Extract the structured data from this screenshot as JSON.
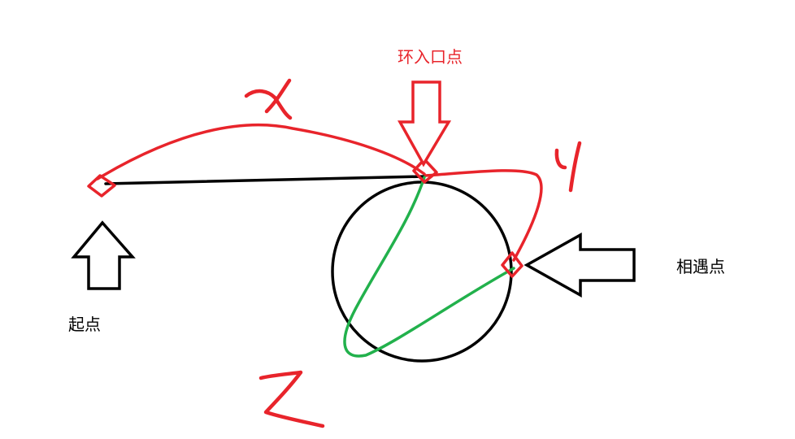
{
  "labels": {
    "start": "起点",
    "entry": "环入口点",
    "meet": "相遇点"
  },
  "variables": {
    "x": "x",
    "y": "y",
    "z": "z"
  },
  "colors": {
    "red": "#e8242b",
    "green": "#22b14c",
    "black": "#000000"
  }
}
